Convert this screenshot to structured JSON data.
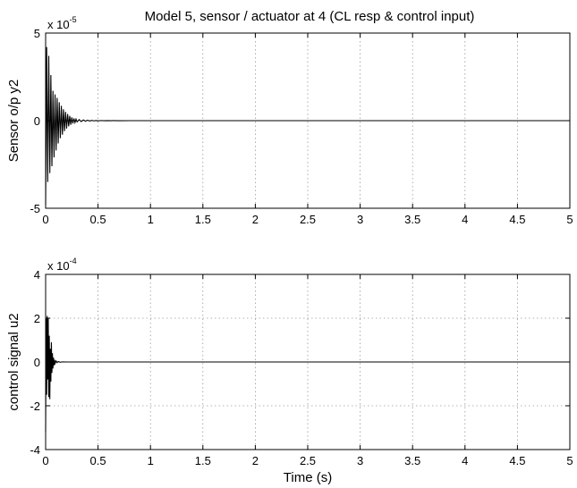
{
  "title": "Model 5, sensor / actuator at 4 (CL resp & control input)",
  "chart_data": [
    {
      "type": "line",
      "title": "Model 5, sensor / actuator at 4 (CL resp & control input)",
      "xlabel": "",
      "ylabel": "Sensor o/p y2",
      "xlim": [
        0,
        5
      ],
      "ylim": [
        -5,
        5
      ],
      "multiplier_base": "x 10",
      "multiplier_exp": "-5",
      "x_ticks": [
        "0",
        "0.5",
        "1",
        "1.5",
        "2",
        "2.5",
        "3",
        "3.5",
        "4",
        "4.5",
        "5"
      ],
      "y_ticks": [
        "-5",
        "0",
        "5"
      ],
      "y_tick_values": [
        -5,
        0,
        5
      ],
      "grid": true,
      "series": [
        {
          "x": [
            0.0,
            0.01,
            0.02,
            0.03,
            0.04,
            0.05,
            0.06,
            0.07,
            0.08,
            0.09,
            0.1,
            0.11,
            0.12,
            0.13,
            0.14,
            0.15,
            0.16,
            0.17,
            0.18,
            0.19,
            0.2,
            0.21,
            0.22,
            0.23,
            0.24,
            0.25,
            0.26,
            0.27,
            0.28,
            0.29,
            0.3,
            0.32,
            0.34,
            0.36,
            0.38,
            0.4,
            0.42,
            0.44,
            0.46,
            0.48,
            0.5,
            0.53,
            0.56,
            0.59,
            0.62,
            0.65,
            0.7,
            0.8,
            1.0,
            2.0,
            3.0,
            4.0,
            5.0
          ],
          "y": [
            -4.8,
            4.2,
            -3.5,
            3.7,
            -3.0,
            2.6,
            -2.6,
            1.7,
            -2.1,
            1.5,
            -1.7,
            1.3,
            -1.3,
            1.05,
            -1.0,
            0.85,
            -0.8,
            0.65,
            -0.6,
            0.5,
            -0.45,
            0.38,
            -0.32,
            0.27,
            -0.23,
            0.19,
            -0.16,
            0.13,
            -0.11,
            0.09,
            -0.07,
            0.06,
            -0.05,
            0.04,
            -0.03,
            0.025,
            -0.02,
            0.015,
            -0.012,
            0.01,
            -0.008,
            0.006,
            -0.005,
            0.004,
            -0.003,
            0.002,
            -0.001,
            0.0,
            0.0,
            0.0,
            0.0,
            0.0,
            0.0
          ]
        }
      ]
    },
    {
      "type": "line",
      "title": "",
      "xlabel": "Time (s)",
      "ylabel": "control signal u2",
      "xlim": [
        0,
        5
      ],
      "ylim": [
        -4,
        4
      ],
      "multiplier_base": "x 10",
      "multiplier_exp": "-4",
      "x_ticks": [
        "0",
        "0.5",
        "1",
        "1.5",
        "2",
        "2.5",
        "3",
        "3.5",
        "4",
        "4.5",
        "5"
      ],
      "y_ticks": [
        "-4",
        "-2",
        "0",
        "2",
        "4"
      ],
      "y_tick_values": [
        -4,
        -2,
        0,
        2,
        4
      ],
      "grid": true,
      "series": [
        {
          "x": [
            0.0,
            0.005,
            0.01,
            0.015,
            0.02,
            0.025,
            0.03,
            0.035,
            0.04,
            0.045,
            0.05,
            0.055,
            0.06,
            0.065,
            0.07,
            0.075,
            0.08,
            0.085,
            0.09,
            0.1,
            0.11,
            0.12,
            0.14,
            0.16,
            0.2,
            0.3,
            1.0,
            2.0,
            3.0,
            4.0,
            5.0
          ],
          "y": [
            -3.2,
            2.0,
            -1.5,
            2.1,
            -0.8,
            2.0,
            -1.6,
            1.2,
            -1.7,
            0.6,
            -0.9,
            0.9,
            -0.5,
            0.4,
            -0.3,
            0.2,
            -0.15,
            0.1,
            -0.07,
            0.05,
            -0.03,
            0.02,
            -0.01,
            0.005,
            0.0,
            0.0,
            0.0,
            0.0,
            0.0,
            0.0,
            0.0
          ]
        }
      ]
    }
  ]
}
